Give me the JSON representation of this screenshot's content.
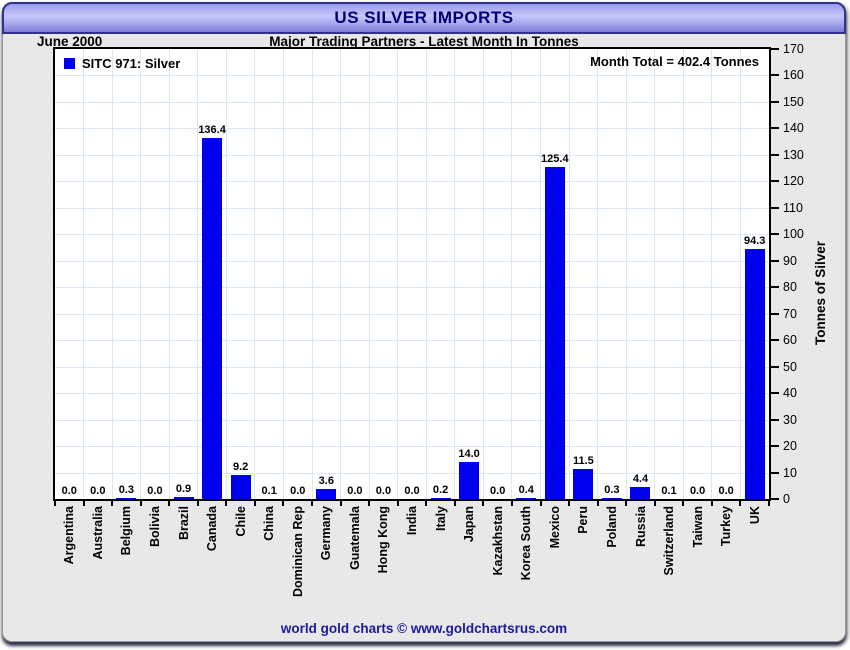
{
  "window": {
    "title": "US SILVER IMPORTS"
  },
  "subtitle": {
    "date_label": "June 2000",
    "heading": "Major Trading Partners - Latest Month In Tonnes"
  },
  "legend": {
    "series_label": "SITC 971: Silver"
  },
  "annotations": {
    "month_total": "Month Total = 402.4 Tonnes"
  },
  "footer": {
    "credit": "world gold charts © www.goldchartsrus.com"
  },
  "colors": {
    "bar": "#0000ee",
    "grid": "#dce7f3",
    "header_title_text": "#00007a",
    "footer_text": "#1a1a9c",
    "axis": "#000000"
  },
  "chart_data": {
    "type": "bar",
    "title": "US SILVER IMPORTS",
    "subtitle": "Major Trading Partners - Latest Month In Tonnes",
    "period": "June 2000",
    "series_name": "SITC 971: Silver",
    "month_total_tonnes": 402.4,
    "categories": [
      "Argentina",
      "Australia",
      "Belgium",
      "Bolivia",
      "Brazil",
      "Canada",
      "Chile",
      "China",
      "Dominican Rep",
      "Germany",
      "Guatemala",
      "Hong Kong",
      "India",
      "Italy",
      "Japan",
      "Kazakhstan",
      "Korea South",
      "Mexico",
      "Peru",
      "Poland",
      "Russia",
      "Switzerland",
      "Taiwan",
      "Turkey",
      "UK"
    ],
    "values": [
      0.0,
      0.0,
      0.3,
      0.0,
      0.9,
      136.4,
      9.2,
      0.1,
      0.0,
      3.6,
      0.0,
      0.0,
      0.0,
      0.2,
      14.0,
      0.0,
      0.4,
      125.4,
      11.5,
      0.3,
      4.4,
      0.1,
      0.0,
      0.0,
      94.3
    ],
    "bar_labels": [
      "0.0",
      "0.0",
      "0.3",
      "0.0",
      "0.9",
      "136.4",
      "9.2",
      "0.1",
      "0.0",
      "3.6",
      "0.0",
      "0.0",
      "0.0",
      "0.2",
      "14.0",
      "0.0",
      "0.4",
      "125.4",
      "11.5",
      "0.3",
      "4.4",
      "0.1",
      "0.0",
      "0.0",
      "94.3"
    ],
    "xlabel": "",
    "ylabel": "Tonnes of Silver",
    "ylim": [
      0,
      170
    ],
    "ytick_step": 10,
    "grid": true,
    "legend_position": "top-left",
    "yaxis_side": "right"
  }
}
